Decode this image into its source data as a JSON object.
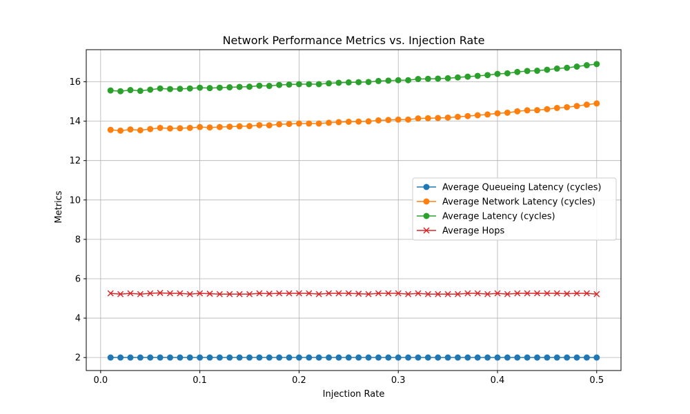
{
  "chart_data": {
    "type": "line",
    "title": "Network Performance Metrics vs. Injection Rate",
    "xlabel": "Injection Rate",
    "ylabel": "Metrics",
    "xlim": [
      -0.0145,
      0.5245
    ],
    "ylim": [
      1.34,
      17.63
    ],
    "grid": true,
    "legend_position": "center-right",
    "x": [
      0.01,
      0.02,
      0.03,
      0.04,
      0.05,
      0.06,
      0.07,
      0.08,
      0.09,
      0.1,
      0.11,
      0.12,
      0.13,
      0.14,
      0.15,
      0.16,
      0.17,
      0.18,
      0.19,
      0.2,
      0.21,
      0.22,
      0.23,
      0.24,
      0.25,
      0.26,
      0.27,
      0.28,
      0.29,
      0.3,
      0.31,
      0.32,
      0.33,
      0.34,
      0.35,
      0.36,
      0.37,
      0.38,
      0.39,
      0.4,
      0.41,
      0.42,
      0.43,
      0.44,
      0.45,
      0.46,
      0.47,
      0.48,
      0.49,
      0.5
    ],
    "xticks": [
      {
        "value": 0.0,
        "label": "0.0"
      },
      {
        "value": 0.1,
        "label": "0.1"
      },
      {
        "value": 0.2,
        "label": "0.2"
      },
      {
        "value": 0.3,
        "label": "0.3"
      },
      {
        "value": 0.4,
        "label": "0.4"
      },
      {
        "value": 0.5,
        "label": "0.5"
      }
    ],
    "yticks": [
      {
        "value": 2,
        "label": "2"
      },
      {
        "value": 4,
        "label": "4"
      },
      {
        "value": 6,
        "label": "6"
      },
      {
        "value": 8,
        "label": "8"
      },
      {
        "value": 10,
        "label": "10"
      },
      {
        "value": 12,
        "label": "12"
      },
      {
        "value": 14,
        "label": "14"
      },
      {
        "value": 16,
        "label": "16"
      }
    ],
    "series": [
      {
        "name": "Average Queueing Latency (cycles)",
        "color": "#1f77b4",
        "marker": "circle",
        "values": [
          2.0,
          2.0,
          2.0,
          2.0,
          2.0,
          2.0,
          2.0,
          2.0,
          2.0,
          2.0,
          2.0,
          2.0,
          2.0,
          2.0,
          2.0,
          2.0,
          2.0,
          2.0,
          2.0,
          2.0,
          2.0,
          2.0,
          2.0,
          2.0,
          2.0,
          2.0,
          2.0,
          2.0,
          2.0,
          2.0,
          2.0,
          2.0,
          2.0,
          2.0,
          2.0,
          2.0,
          2.0,
          2.0,
          2.0,
          2.0,
          2.0,
          2.0,
          2.0,
          2.0,
          2.0,
          2.0,
          2.0,
          2.0,
          2.0,
          2.0
        ]
      },
      {
        "name": "Average Network Latency (cycles)",
        "color": "#ff7f0e",
        "marker": "circle",
        "values": [
          13.56,
          13.52,
          13.58,
          13.54,
          13.6,
          13.66,
          13.63,
          13.64,
          13.66,
          13.7,
          13.68,
          13.7,
          13.72,
          13.74,
          13.75,
          13.8,
          13.79,
          13.84,
          13.86,
          13.88,
          13.88,
          13.88,
          13.92,
          13.95,
          13.97,
          13.98,
          13.99,
          14.04,
          14.06,
          14.08,
          14.08,
          14.14,
          14.15,
          14.16,
          14.18,
          14.22,
          14.26,
          14.3,
          14.34,
          14.4,
          14.43,
          14.5,
          14.55,
          14.56,
          14.61,
          14.67,
          14.71,
          14.77,
          14.84,
          14.9
        ]
      },
      {
        "name": "Average Latency (cycles)",
        "color": "#2ca02c",
        "marker": "circle",
        "values": [
          15.56,
          15.52,
          15.58,
          15.54,
          15.6,
          15.66,
          15.63,
          15.64,
          15.66,
          15.7,
          15.68,
          15.7,
          15.72,
          15.74,
          15.75,
          15.8,
          15.79,
          15.84,
          15.86,
          15.88,
          15.88,
          15.88,
          15.92,
          15.95,
          15.97,
          15.98,
          15.99,
          16.04,
          16.06,
          16.08,
          16.08,
          16.14,
          16.15,
          16.16,
          16.18,
          16.22,
          16.26,
          16.3,
          16.34,
          16.4,
          16.43,
          16.5,
          16.55,
          16.56,
          16.61,
          16.67,
          16.71,
          16.77,
          16.84,
          16.9
        ]
      },
      {
        "name": "Average Hops",
        "color": "#d62728",
        "marker": "x",
        "values": [
          5.26,
          5.22,
          5.26,
          5.22,
          5.26,
          5.28,
          5.26,
          5.26,
          5.22,
          5.26,
          5.24,
          5.22,
          5.22,
          5.22,
          5.22,
          5.26,
          5.24,
          5.26,
          5.26,
          5.26,
          5.26,
          5.22,
          5.26,
          5.26,
          5.26,
          5.24,
          5.22,
          5.26,
          5.26,
          5.26,
          5.22,
          5.26,
          5.22,
          5.22,
          5.22,
          5.22,
          5.26,
          5.26,
          5.22,
          5.26,
          5.22,
          5.26,
          5.26,
          5.26,
          5.26,
          5.26,
          5.24,
          5.26,
          5.26,
          5.22
        ]
      }
    ]
  }
}
